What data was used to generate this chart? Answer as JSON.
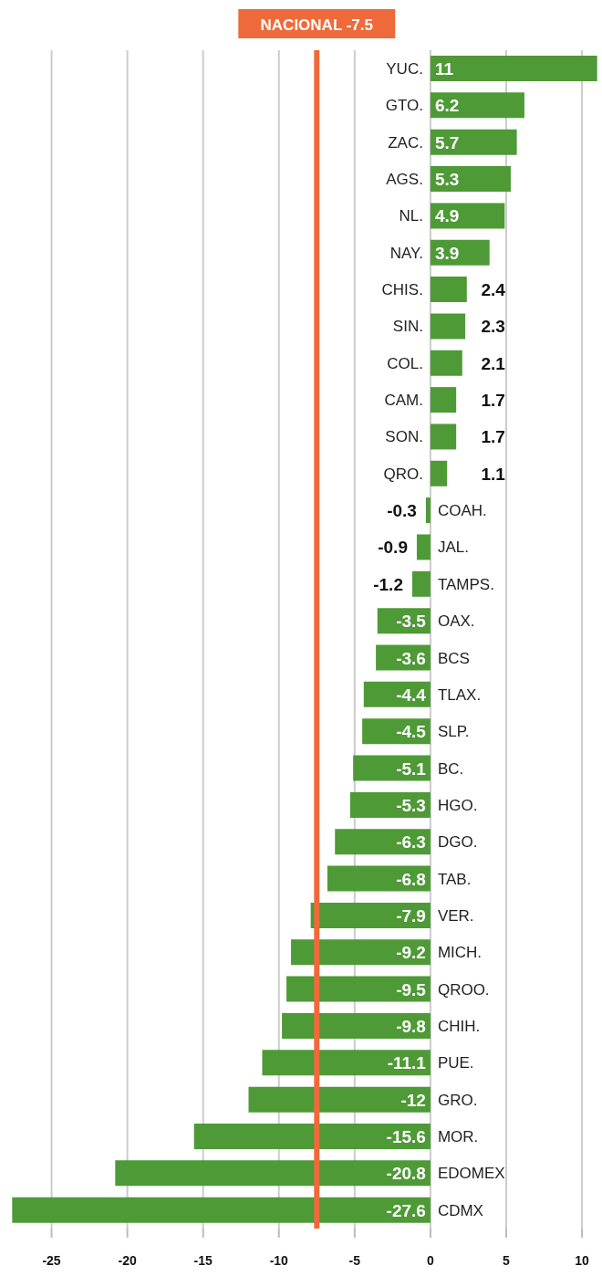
{
  "chart_data": {
    "type": "bar",
    "orientation": "horizontal",
    "categories": [
      "YUC.",
      "GTO.",
      "ZAC.",
      "AGS.",
      "NL.",
      "NAY.",
      "CHIS.",
      "SIN.",
      "COL.",
      "CAM.",
      "SON.",
      "QRO.",
      "COAH.",
      "JAL.",
      "TAMPS.",
      "OAX.",
      "BCS",
      "TLAX.",
      "SLP.",
      "BC.",
      "HGO.",
      "DGO.",
      "TAB.",
      "VER.",
      "MICH.",
      "QROO.",
      "CHIH.",
      "PUE.",
      "GRO.",
      "MOR.",
      "EDOMEX",
      "CDMX"
    ],
    "values": [
      11,
      6.2,
      5.7,
      5.3,
      4.9,
      3.9,
      2.4,
      2.3,
      2.1,
      1.7,
      1.7,
      1.1,
      -0.3,
      -0.9,
      -1.2,
      -3.5,
      -3.6,
      -4.4,
      -4.5,
      -5.1,
      -5.3,
      -6.3,
      -6.8,
      -7.9,
      -9.2,
      -9.5,
      -9.8,
      -11.1,
      -12,
      -15.6,
      -20.8,
      -27.6
    ],
    "color": "#4e9a36",
    "xlim": [
      -27.8,
      11.2
    ],
    "xticks": [
      -25,
      -20,
      -15,
      -10,
      -5,
      0,
      5,
      10
    ],
    "grid": "x",
    "data_labels": true,
    "ref_lines": [
      {
        "axis": "x",
        "value": -7.5,
        "label": "NACIONAL -7.5",
        "color": "#ef6a3a"
      }
    ]
  }
}
